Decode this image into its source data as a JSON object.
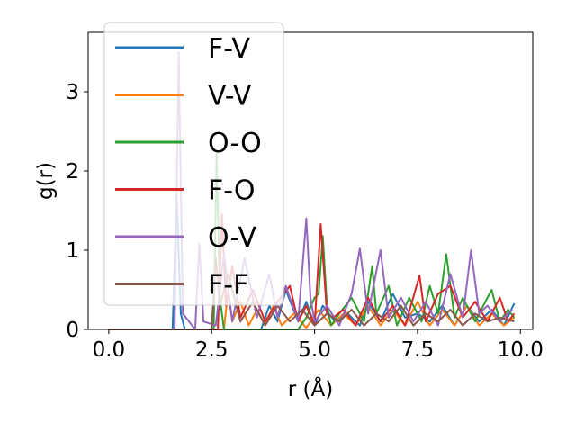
{
  "chart_data": {
    "type": "line",
    "title": "",
    "xlabel": "r (Å)",
    "ylabel": "g(r)",
    "xlim": [
      -0.5,
      10.3
    ],
    "ylim": [
      0,
      3.75
    ],
    "xticks": [
      0.0,
      2.5,
      5.0,
      7.5,
      10.0
    ],
    "xtick_labels": [
      "0.0",
      "2.5",
      "5.0",
      "7.5",
      "10.0"
    ],
    "yticks": [
      0,
      1,
      2,
      3
    ],
    "ytick_labels": [
      "0",
      "1",
      "2",
      "3"
    ],
    "grid": false,
    "legend_position": "upper-left",
    "series": [
      {
        "name": "F-V",
        "color": "#1f77b4",
        "x": [
          0,
          1.55,
          1.65,
          1.75,
          1.85,
          3.7,
          3.9,
          4.1,
          4.3,
          4.6,
          4.8,
          5.0,
          5.2,
          5.5,
          5.8,
          6.1,
          6.3,
          6.6,
          6.9,
          7.2,
          7.5,
          7.8,
          8.1,
          8.4,
          8.7,
          9.0,
          9.3,
          9.6,
          9.85
        ],
        "y": [
          0,
          0,
          1.7,
          0.2,
          0,
          0,
          0.3,
          0.1,
          0.5,
          0.1,
          0.35,
          0.05,
          0.3,
          0.1,
          0.2,
          0.05,
          0.35,
          0.1,
          0.45,
          0.15,
          0.2,
          0.1,
          0.3,
          0.05,
          0.3,
          0.1,
          0.25,
          0.05,
          0.33
        ]
      },
      {
        "name": "V-V",
        "color": "#ff7f0e",
        "x": [
          0,
          2.8,
          2.9,
          3.0,
          3.2,
          3.4,
          3.6,
          3.8,
          4.0,
          4.2,
          4.5,
          4.8,
          5.1,
          5.4,
          5.7,
          6.0,
          6.3,
          6.6,
          6.9,
          7.2,
          7.5,
          7.8,
          8.1,
          8.4,
          8.7,
          9.0,
          9.3,
          9.6,
          9.85
        ],
        "y": [
          0,
          0,
          0.5,
          0.1,
          0.35,
          0.05,
          0.25,
          0.05,
          0.3,
          0.05,
          0.2,
          0.02,
          0.25,
          0.05,
          0.2,
          0.05,
          0.3,
          0.05,
          0.25,
          0.05,
          0.35,
          0.05,
          0.25,
          0.05,
          0.3,
          0.05,
          0.2,
          0.05,
          0.15
        ]
      },
      {
        "name": "O-O",
        "color": "#2ca02c",
        "x": [
          0,
          2.55,
          2.62,
          2.7,
          2.8,
          4.6,
          4.8,
          5.0,
          5.1,
          5.2,
          5.3,
          5.4,
          5.6,
          5.9,
          6.2,
          6.4,
          6.5,
          6.8,
          7.0,
          7.3,
          7.6,
          7.8,
          8.0,
          8.2,
          8.4,
          8.6,
          8.9,
          9.1,
          9.3,
          9.5,
          9.7,
          9.85
        ],
        "y": [
          0,
          0,
          2.25,
          0.4,
          0,
          0,
          0.15,
          0.4,
          0.45,
          1.18,
          0.3,
          0.05,
          0.2,
          0.4,
          0.1,
          0.8,
          0.2,
          0.55,
          0.05,
          0.4,
          0.1,
          0.55,
          0.2,
          0.95,
          0.15,
          0.4,
          0.1,
          0.3,
          0.5,
          0.1,
          0.25,
          0.15
        ]
      },
      {
        "name": "F-O",
        "color": "#d62728",
        "x": [
          0,
          2.65,
          2.75,
          2.85,
          3.0,
          3.2,
          3.5,
          3.8,
          4.1,
          4.4,
          4.6,
          4.8,
          5.0,
          5.15,
          5.3,
          5.45,
          5.7,
          6.0,
          6.3,
          6.6,
          6.9,
          7.2,
          7.55,
          7.7,
          8.0,
          8.3,
          8.6,
          8.9,
          9.2,
          9.5,
          9.7,
          9.85
        ],
        "y": [
          0,
          0,
          1.45,
          0.3,
          0.8,
          0.15,
          0.5,
          0.1,
          0.35,
          0.55,
          0.1,
          0.3,
          0.05,
          1.33,
          0.2,
          0.15,
          0.25,
          0.05,
          0.4,
          0.1,
          0.3,
          0.05,
          0.68,
          0.1,
          0.45,
          0.55,
          0.15,
          0.35,
          0.1,
          0.4,
          0.1,
          0.2
        ]
      },
      {
        "name": "O-V",
        "color": "#9467bd",
        "x": [
          0,
          1.6,
          1.7,
          1.8,
          2.1,
          2.2,
          2.3,
          2.6,
          2.8,
          3.0,
          3.3,
          3.6,
          3.9,
          4.1,
          4.3,
          4.6,
          4.8,
          4.9,
          5.0,
          5.3,
          5.6,
          5.9,
          6.1,
          6.3,
          6.6,
          6.8,
          7.1,
          7.4,
          7.7,
          8.0,
          8.3,
          8.6,
          8.8,
          9.0,
          9.2,
          9.5,
          9.8
        ],
        "y": [
          0,
          0,
          3.5,
          0.2,
          0,
          1.08,
          0.1,
          0.05,
          0.95,
          0.1,
          0.9,
          0.15,
          0.7,
          0.15,
          0.55,
          0.1,
          1.4,
          0.4,
          0.1,
          0.3,
          0.05,
          0.45,
          1.02,
          0.2,
          1.0,
          0.15,
          0.4,
          0.1,
          0.35,
          0.05,
          0.7,
          0.15,
          1.0,
          0.2,
          0.3,
          0.1,
          0.25
        ]
      },
      {
        "name": "F-F",
        "color": "#8c564b",
        "x": [
          0,
          2.5,
          2.6,
          2.7,
          2.9,
          3.2,
          3.5,
          3.8,
          4.1,
          4.4,
          4.7,
          5.0,
          5.3,
          5.6,
          5.9,
          6.2,
          6.5,
          6.8,
          7.1,
          7.4,
          7.7,
          8.0,
          8.3,
          8.6,
          8.9,
          9.2,
          9.5,
          9.85
        ],
        "y": [
          0,
          0,
          0.9,
          0.3,
          0.7,
          0.1,
          0.35,
          0.05,
          0.3,
          0.1,
          0.25,
          0.05,
          0.2,
          0.1,
          0.25,
          0.05,
          0.2,
          0.1,
          0.3,
          0.05,
          0.2,
          0.1,
          0.25,
          0.05,
          0.2,
          0.1,
          0.15,
          0.1
        ]
      }
    ]
  }
}
